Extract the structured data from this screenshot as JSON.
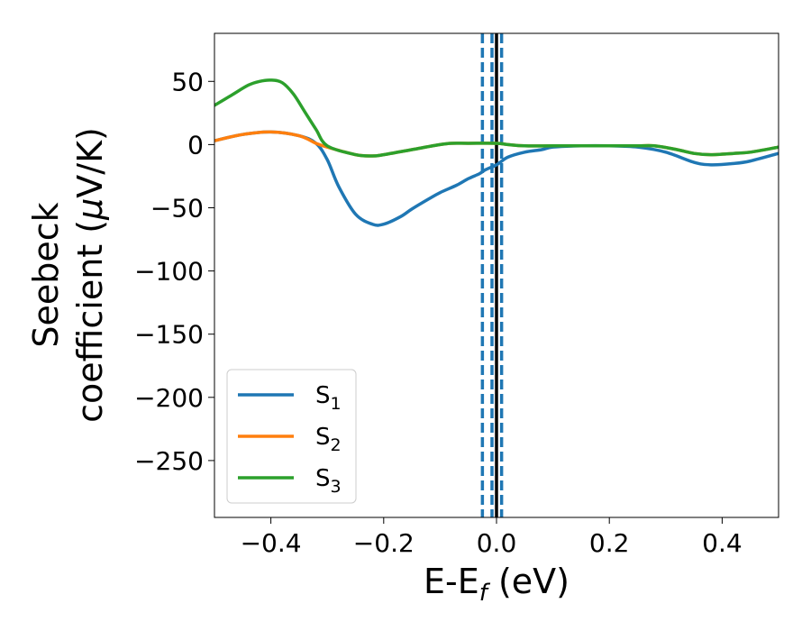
{
  "chart_data": {
    "type": "line",
    "title": "",
    "xlabel": {
      "main": "E-E",
      "sub": "f",
      "unit": " (eV)"
    },
    "ylabel": {
      "line1": "Seebeck",
      "line2_prefix": "coefficient  (",
      "mu": "μ",
      "line2_suffix": "V/K)"
    },
    "xlim": [
      -0.5,
      0.5
    ],
    "ylim": [
      -295,
      88
    ],
    "xticks": [
      -0.4,
      -0.2,
      0.0,
      0.2,
      0.4
    ],
    "xtick_labels": [
      "−0.4",
      "−0.2",
      "0.0",
      "0.2",
      "0.4"
    ],
    "yticks": [
      50,
      0,
      -50,
      -100,
      -150,
      -200,
      -250
    ],
    "ytick_labels": [
      "50",
      "0",
      "−50",
      "−100",
      "−150",
      "−200",
      "−250"
    ],
    "grid": false,
    "legend_position": "lower-left",
    "vlines": {
      "solid": [
        {
          "x": 0.0,
          "color": "#000000"
        }
      ],
      "dashed": [
        {
          "x": -0.025,
          "color": "#1f77b4"
        },
        {
          "x": -0.008,
          "color": "#1f77b4"
        },
        {
          "x": 0.009,
          "color": "#1f77b4"
        }
      ]
    },
    "series": [
      {
        "name": "S",
        "sub": "1",
        "color": "#1f77b4",
        "x": [
          -0.5,
          -0.45,
          -0.4,
          -0.35,
          -0.32,
          -0.3,
          -0.28,
          -0.25,
          -0.22,
          -0.2,
          -0.17,
          -0.15,
          -0.12,
          -0.1,
          -0.07,
          -0.05,
          -0.03,
          -0.02,
          0.0,
          0.02,
          0.05,
          0.08,
          0.1,
          0.15,
          0.2,
          0.25,
          0.3,
          0.35,
          0.38,
          0.42,
          0.45,
          0.5
        ],
        "y": [
          3,
          8,
          10,
          7,
          1,
          -12,
          -33,
          -55,
          -63,
          -63,
          -57,
          -51,
          -43,
          -38,
          -32,
          -27,
          -23,
          -20,
          -16,
          -10,
          -6,
          -4,
          -2,
          -1,
          -1,
          -2,
          -6,
          -14,
          -16,
          -15,
          -13,
          -7
        ]
      },
      {
        "name": "S",
        "sub": "2",
        "color": "#ff7f0e",
        "x": [
          -0.5,
          -0.45,
          -0.4,
          -0.35,
          -0.32,
          -0.3,
          -0.25,
          -0.22,
          -0.2,
          -0.15,
          -0.1,
          -0.08,
          -0.05,
          0.0,
          0.02,
          0.05,
          0.1,
          0.15,
          0.2,
          0.25,
          0.28,
          0.32,
          0.35,
          0.38,
          0.42,
          0.45,
          0.5
        ],
        "y": [
          3,
          8,
          10,
          7,
          1,
          -2,
          -8,
          -9,
          -8,
          -4,
          0,
          1,
          1,
          1,
          0,
          -1,
          -1,
          -1,
          -1,
          -1,
          -1,
          -4,
          -7,
          -8,
          -7,
          -6,
          -2
        ]
      },
      {
        "name": "S",
        "sub": "3",
        "color": "#2ca02c",
        "x": [
          -0.5,
          -0.47,
          -0.44,
          -0.42,
          -0.4,
          -0.38,
          -0.36,
          -0.34,
          -0.32,
          -0.3,
          -0.25,
          -0.22,
          -0.2,
          -0.15,
          -0.1,
          -0.08,
          -0.05,
          0.0,
          0.02,
          0.05,
          0.1,
          0.15,
          0.2,
          0.25,
          0.28,
          0.32,
          0.35,
          0.38,
          0.42,
          0.45,
          0.5
        ],
        "y": [
          31,
          39,
          47,
          50,
          51,
          49,
          40,
          26,
          12,
          -1,
          -8,
          -9,
          -8,
          -4,
          0,
          1,
          1,
          1,
          0,
          -1,
          -1,
          -1,
          -1,
          -1,
          -1,
          -4,
          -7,
          -8,
          -7,
          -6,
          -2
        ]
      }
    ]
  }
}
